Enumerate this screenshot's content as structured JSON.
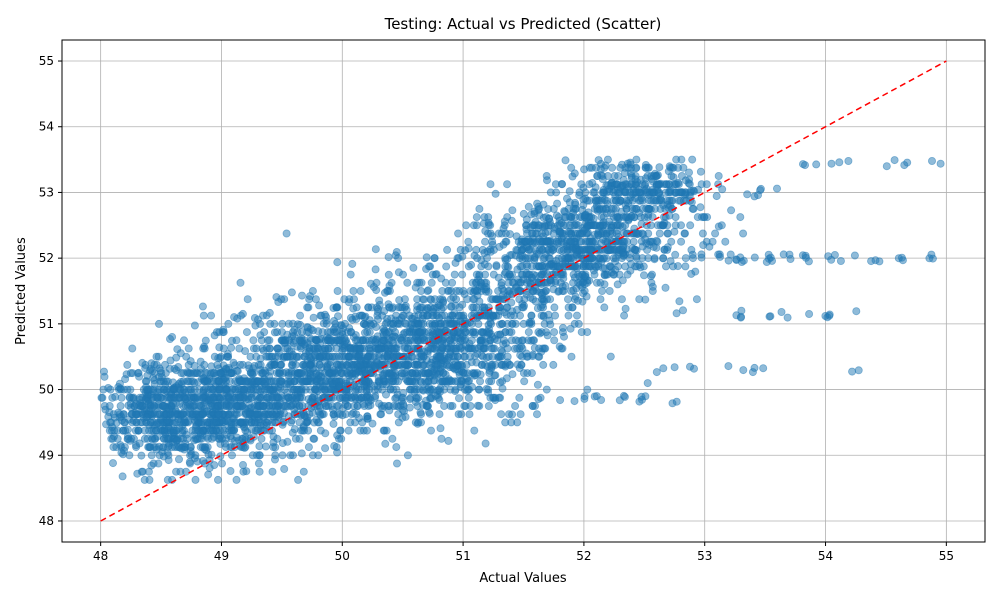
{
  "chart_data": {
    "type": "scatter",
    "title": "Testing: Actual vs Predicted (Scatter)",
    "xlabel": "Actual Values",
    "ylabel": "Predicted Values",
    "xlim": [
      47.68,
      55.32
    ],
    "ylim": [
      47.68,
      55.32
    ],
    "xticks": [
      "48",
      "49",
      "50",
      "51",
      "52",
      "53",
      "54",
      "55"
    ],
    "yticks": [
      "48",
      "49",
      "50",
      "51",
      "52",
      "53",
      "54",
      "55"
    ],
    "grid": true,
    "marker_color": "#1f77b4",
    "marker_alpha": 0.5,
    "reference_line": {
      "style": "dashed",
      "color": "#ff0000",
      "from": [
        48.0,
        48.0
      ],
      "to": [
        55.0,
        55.0
      ]
    },
    "point_cloud": {
      "clusters": [
        {
          "x_center": 48.5,
          "y_center": 49.6,
          "x_spread": 0.35,
          "y_spread": 0.38,
          "n": 520
        },
        {
          "x_center": 49.1,
          "y_center": 49.7,
          "x_spread": 0.4,
          "y_spread": 0.38,
          "n": 620
        },
        {
          "x_center": 49.9,
          "y_center": 50.3,
          "x_spread": 0.5,
          "y_spread": 0.45,
          "n": 900
        },
        {
          "x_center": 50.6,
          "y_center": 50.6,
          "x_spread": 0.45,
          "y_spread": 0.55,
          "n": 700
        },
        {
          "x_center": 51.2,
          "y_center": 51.0,
          "x_spread": 0.35,
          "y_spread": 0.6,
          "n": 420
        },
        {
          "x_center": 51.8,
          "y_center": 52.1,
          "x_spread": 0.35,
          "y_spread": 0.35,
          "n": 520
        },
        {
          "x_center": 52.3,
          "y_center": 52.5,
          "x_spread": 0.35,
          "y_spread": 0.45,
          "n": 380
        },
        {
          "x_center": 52.5,
          "y_center": 53.1,
          "x_spread": 0.25,
          "y_spread": 0.2,
          "n": 180
        }
      ],
      "row_bands": [
        {
          "y": 53.45,
          "x_from": 53.8,
          "x_to": 55.0,
          "n": 14
        },
        {
          "y": 53.0,
          "x_from": 52.5,
          "x_to": 53.6,
          "n": 14
        },
        {
          "y": 52.0,
          "x_from": 52.8,
          "x_to": 54.95,
          "n": 40
        },
        {
          "y": 51.15,
          "x_from": 52.3,
          "x_to": 54.3,
          "n": 16
        },
        {
          "y": 50.3,
          "x_from": 52.4,
          "x_to": 54.3,
          "n": 12
        },
        {
          "y": 49.85,
          "x_from": 51.8,
          "x_to": 52.8,
          "n": 16
        },
        {
          "y": 50.25,
          "x_from": 48.0,
          "x_to": 48.6,
          "n": 10
        },
        {
          "y": 49.75,
          "x_from": 48.2,
          "x_to": 48.5,
          "n": 6
        }
      ]
    }
  }
}
